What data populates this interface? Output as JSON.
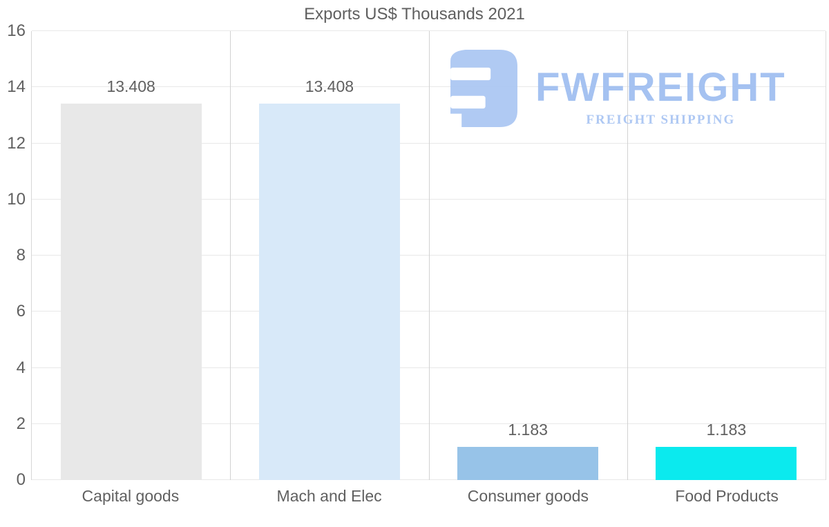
{
  "logo": {
    "name": "FWFREIGHT",
    "subtitle": "FREIGHT SHIPPING",
    "icon_color": "#aac6f3",
    "text_color": "#9ebdf0",
    "subtitle_color": "#a8c4f3"
  },
  "chart_data": {
    "type": "bar",
    "title": "Exports US$ Thousands 2021",
    "categories": [
      "Capital goods",
      "Mach and Elec",
      "Consumer goods",
      "Food Products"
    ],
    "values": [
      13.408,
      13.408,
      1.183,
      1.183
    ],
    "value_labels": [
      "13.408",
      "13.408",
      "1.183",
      "1.183"
    ],
    "bar_colors": [
      "#e8e8e8",
      "#d8e9f9",
      "#97c3e8",
      "#0beaee"
    ],
    "xlabel": "",
    "ylabel": "",
    "ylim": [
      0,
      16
    ],
    "yticks": [
      0,
      2,
      4,
      6,
      8,
      10,
      12,
      14,
      16
    ],
    "grid": true,
    "legend": false
  }
}
